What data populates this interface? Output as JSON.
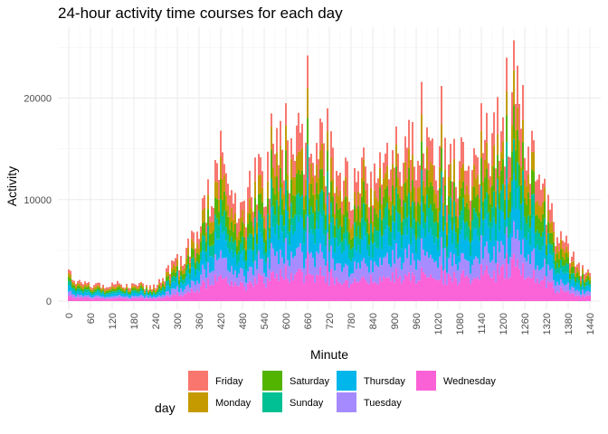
{
  "chart_data": {
    "type": "bar",
    "stacked": true,
    "title": "24-hour activity time courses for each day",
    "xlabel": "Minute",
    "ylabel": "Activity",
    "xlim": [
      -30,
      1470
    ],
    "ylim": [
      -800,
      27000
    ],
    "x_ticks": [
      0,
      60,
      120,
      180,
      240,
      300,
      360,
      420,
      480,
      540,
      600,
      660,
      720,
      780,
      840,
      900,
      960,
      1020,
      1080,
      1140,
      1200,
      1260,
      1320,
      1380,
      1440
    ],
    "y_ticks": [
      0,
      10000,
      20000
    ],
    "y_tick_labels": [
      "0",
      "10000",
      "20000"
    ],
    "legend": {
      "title": "day",
      "position": "bottom",
      "entries": [
        {
          "name": "Friday",
          "color": "#F8766D"
        },
        {
          "name": "Monday",
          "color": "#C49A00"
        },
        {
          "name": "Saturday",
          "color": "#53B400"
        },
        {
          "name": "Sunday",
          "color": "#00C094"
        },
        {
          "name": "Thursday",
          "color": "#00B6EB"
        },
        {
          "name": "Tuesday",
          "color": "#A58AFF"
        },
        {
          "name": "Wednesday",
          "color": "#FB61D7"
        }
      ]
    },
    "series_stack_order_bottom_to_top": [
      "Wednesday",
      "Tuesday",
      "Thursday",
      "Sunday",
      "Saturday",
      "Monday",
      "Friday"
    ],
    "series_shares": [
      0.17,
      0.13,
      0.17,
      0.13,
      0.13,
      0.12,
      0.15
    ],
    "bin_minutes": 5,
    "total_profile_anchor_minutes": [
      0,
      20,
      60,
      120,
      180,
      240,
      270,
      300,
      330,
      360,
      390,
      420,
      450,
      480,
      510,
      540,
      570,
      600,
      630,
      660,
      690,
      720,
      750,
      780,
      810,
      840,
      870,
      900,
      930,
      960,
      990,
      1020,
      1050,
      1080,
      1110,
      1140,
      1170,
      1200,
      1230,
      1260,
      1290,
      1320,
      1350,
      1380,
      1410,
      1440
    ],
    "total_profile_anchor_values": [
      2900,
      2100,
      1700,
      1600,
      1500,
      1500,
      2600,
      4000,
      5200,
      6800,
      10500,
      12000,
      11000,
      9500,
      11000,
      12500,
      14000,
      14500,
      15000,
      16500,
      14500,
      14000,
      12000,
      12000,
      12000,
      12000,
      12500,
      13500,
      14000,
      15000,
      15000,
      14500,
      12500,
      13000,
      13000,
      14000,
      16500,
      17500,
      17500,
      16500,
      13500,
      10000,
      7000,
      5000,
      3000,
      2500
    ],
    "peaks": [
      {
        "minute": 662,
        "value": 24200
      },
      {
        "minute": 1210,
        "value": 24000
      },
      {
        "minute": 1230,
        "value": 25700
      },
      {
        "minute": 1240,
        "value": 23200
      },
      {
        "minute": 1255,
        "value": 21300
      },
      {
        "minute": 975,
        "value": 21600
      },
      {
        "minute": 1030,
        "value": 21200
      },
      {
        "minute": 420,
        "value": 16800
      },
      {
        "minute": 560,
        "value": 18500
      },
      {
        "minute": 600,
        "value": 19500
      },
      {
        "minute": 715,
        "value": 19000
      },
      {
        "minute": 1140,
        "value": 19500
      }
    ]
  }
}
